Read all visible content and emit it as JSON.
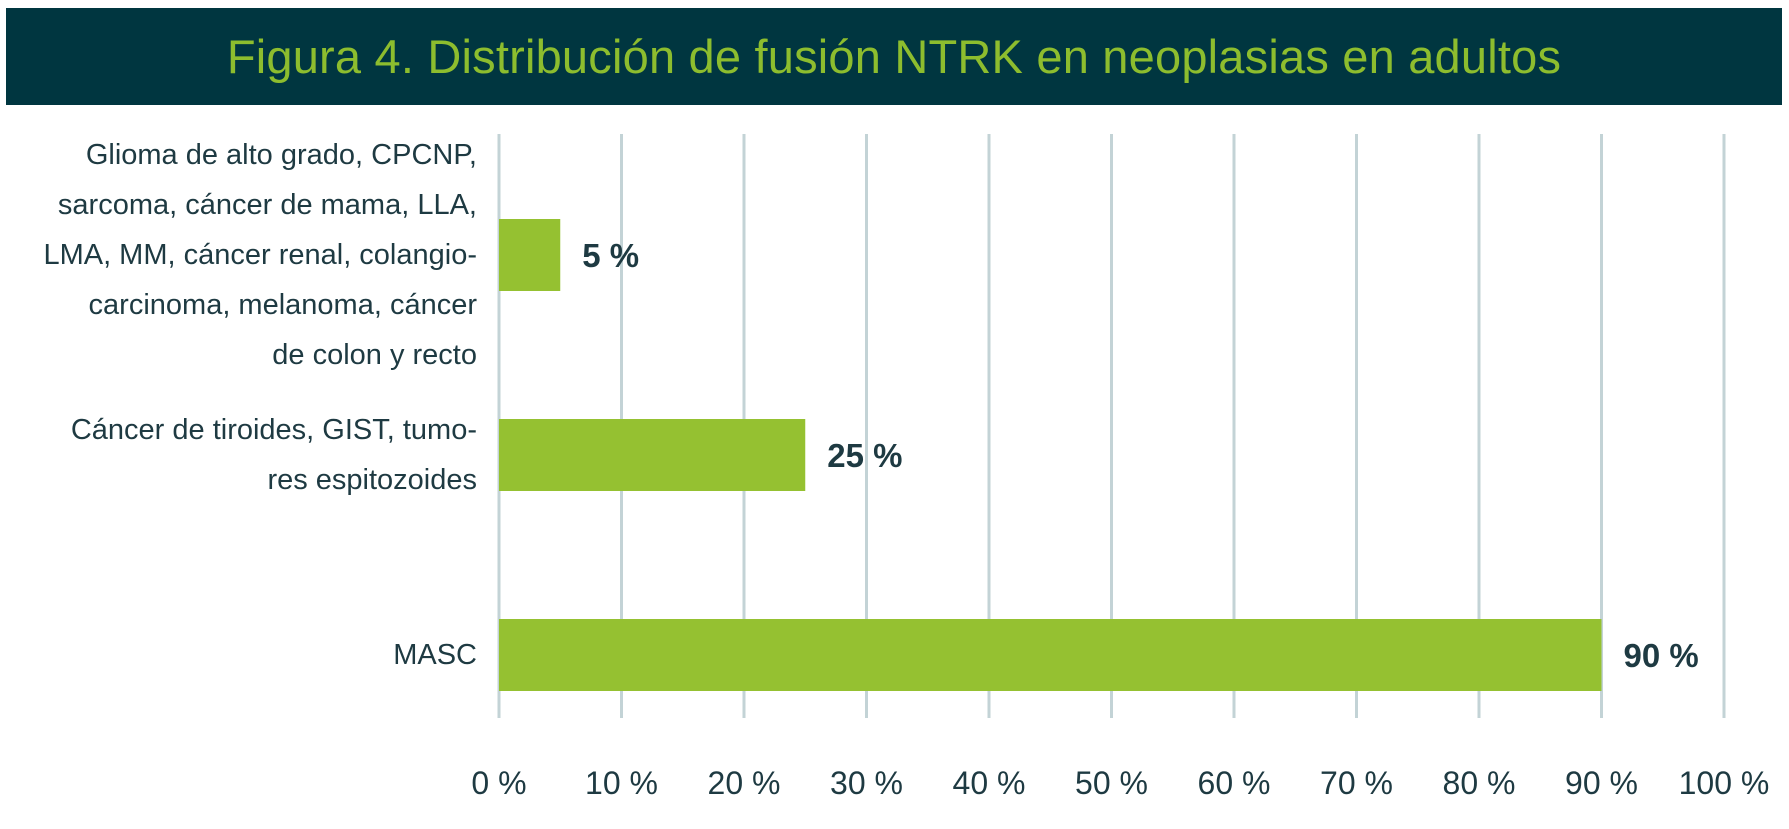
{
  "chart_data": {
    "type": "bar",
    "orientation": "horizontal",
    "title": "Figura 4. Distribución de fusión NTRK en neoplasias en adultos",
    "categories": [
      [
        "Glioma de alto grado, CPCNP,",
        "sarcoma, cáncer de mama, LLA,",
        "LMA, MM, cáncer renal, colangio-",
        "carcinoma, melanoma, cáncer",
        "de colon y recto"
      ],
      [
        "Cáncer de tiroides, GIST, tumo-",
        "res espitozoides"
      ],
      [
        "MASC"
      ]
    ],
    "values": [
      5,
      25,
      90
    ],
    "data_labels": [
      "5 %",
      "25 %",
      "90 %"
    ],
    "xlim": [
      0,
      100
    ],
    "xticks": [
      0,
      10,
      20,
      30,
      40,
      50,
      60,
      70,
      80,
      90,
      100
    ],
    "xtick_labels": [
      "0 %",
      "10 %",
      "20 %",
      "30 %",
      "40 %",
      "50 %",
      "60 %",
      "70 %",
      "80 %",
      "90 %",
      "100 %"
    ],
    "grid": true,
    "legend": "none",
    "colors": {
      "bar": "#95c131",
      "grid": "#c3d3d6",
      "title_bg": "#003640",
      "title_text": "#8dbd2e",
      "text": "#1e3a42"
    }
  }
}
